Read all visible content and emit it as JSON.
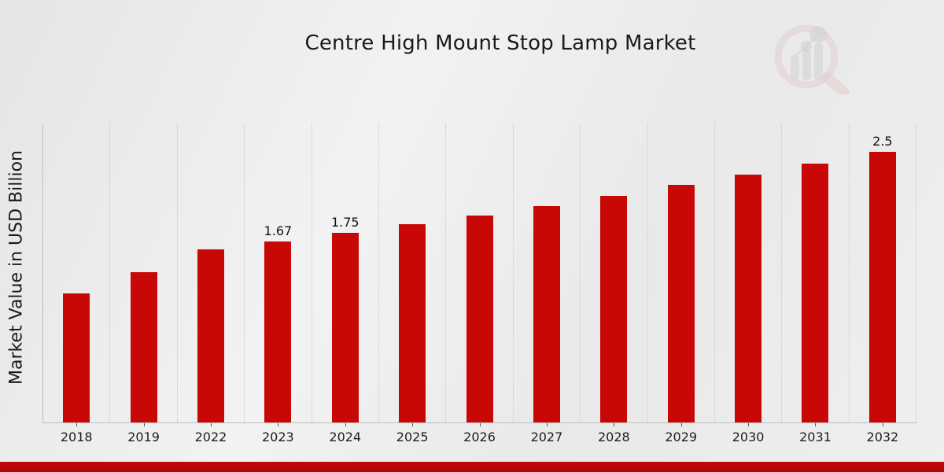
{
  "chart_data": {
    "type": "bar",
    "title": "Centre High Mount Stop Lamp Market",
    "xlabel": "",
    "ylabel": "Market Value in USD Billion",
    "categories": [
      "2018",
      "2019",
      "2022",
      "2023",
      "2024",
      "2025",
      "2026",
      "2027",
      "2028",
      "2029",
      "2030",
      "2031",
      "2032"
    ],
    "values": [
      1.19,
      1.39,
      1.6,
      1.67,
      1.75,
      1.83,
      1.91,
      2.0,
      2.09,
      2.19,
      2.29,
      2.39,
      2.5
    ],
    "value_labels": {
      "2023": "1.67",
      "2024": "1.75",
      "2032": "2.5"
    },
    "ylim": [
      0,
      2.76
    ],
    "grid": "vertical-dotted",
    "legend": false,
    "bar_color": "#c80707",
    "accent_color": "#c30808"
  },
  "watermark": {
    "icon": "magnifier-bar-chart-icon"
  }
}
